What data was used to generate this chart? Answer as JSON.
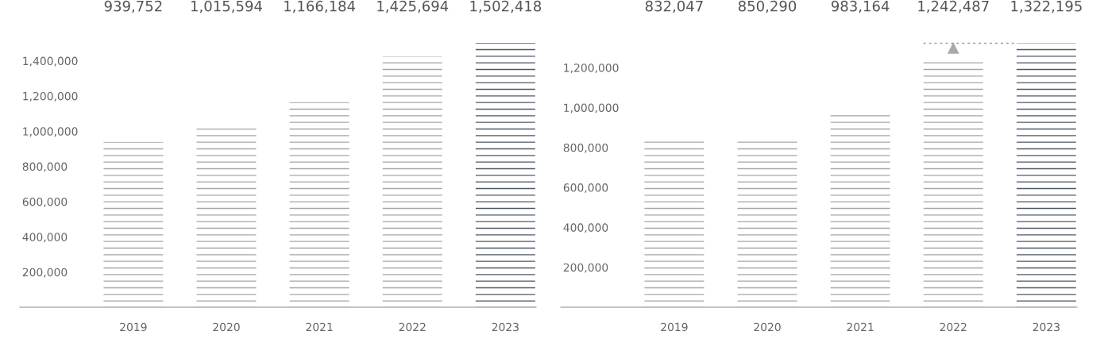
{
  "chart_data": [
    {
      "type": "bar",
      "categories": [
        "2019",
        "2020",
        "2021",
        "2022",
        "2023"
      ],
      "values": [
        939752,
        1015594,
        1166184,
        1425694,
        1502418
      ],
      "colors": [
        "#a6a6a6",
        "#a6a6a6",
        "#a6a6a6",
        "#a6a6a6",
        "#4d5866"
      ],
      "ylim": [
        0,
        1520000
      ],
      "yticks": [
        {
          "value": 200000,
          "label": "200,000"
        },
        {
          "value": 400000,
          "label": "400,000"
        },
        {
          "value": 600000,
          "label": "600,000"
        },
        {
          "value": 800000,
          "label": "800,000"
        },
        {
          "value": 1000000,
          "label": "1,000,000"
        },
        {
          "value": 1200000,
          "label": "1,200,000"
        },
        {
          "value": 1400000,
          "label": "1,400,000"
        }
      ],
      "value_labels": [
        "939,752",
        "1,015,594",
        "1,166,184",
        "1,425,694",
        "1,502,418"
      ],
      "grid": false,
      "legend": false
    },
    {
      "type": "bar",
      "categories": [
        "2019",
        "2020",
        "2021",
        "2022",
        "2023"
      ],
      "values": [
        832047,
        850290,
        983164,
        1242487,
        1322195
      ],
      "colors": [
        "#a6a6a6",
        "#a6a6a6",
        "#a6a6a6",
        "#a6a6a6",
        "#4d5866"
      ],
      "ylim": [
        0,
        1340000
      ],
      "yticks": [
        {
          "value": 200000,
          "label": "200,000"
        },
        {
          "value": 400000,
          "label": "400,000"
        },
        {
          "value": 600000,
          "label": "600,000"
        },
        {
          "value": 800000,
          "label": "800,000"
        },
        {
          "value": 1000000,
          "label": "1,000,000"
        },
        {
          "value": 1200000,
          "label": "1,200,000"
        }
      ],
      "value_labels": [
        "832,047",
        "850,290",
        "983,164",
        "1,242,487",
        "1,322,195"
      ],
      "grid": false,
      "legend": false
    }
  ]
}
